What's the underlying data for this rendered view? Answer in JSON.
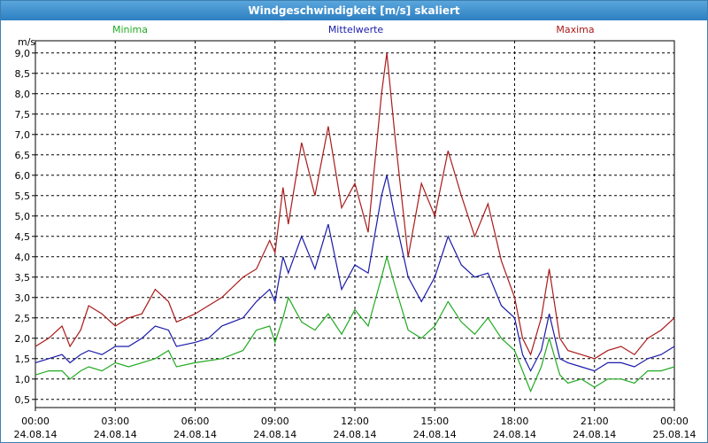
{
  "window": {
    "title": "Windgeschwindigkeit [m/s] skaliert"
  },
  "chart_data": {
    "type": "line",
    "title": "Windgeschwindigkeit [m/s] skaliert",
    "ylabel": "m/s",
    "xlabel": "",
    "ylim": [
      0.3,
      9.3
    ],
    "xlim": [
      0,
      24
    ],
    "grid": true,
    "legend_placement": "top",
    "y_ticks": [
      "0,5",
      "1,0",
      "1,5",
      "2,0",
      "2,5",
      "3,0",
      "3,5",
      "4,0",
      "4,5",
      "5,0",
      "5,5",
      "6,0",
      "6,5",
      "7,0",
      "7,5",
      "8,0",
      "8,5",
      "9,0"
    ],
    "y_tick_values": [
      0.5,
      1.0,
      1.5,
      2.0,
      2.5,
      3.0,
      3.5,
      4.0,
      4.5,
      5.0,
      5.5,
      6.0,
      6.5,
      7.0,
      7.5,
      8.0,
      8.5,
      9.0
    ],
    "x_ticks": [
      {
        "time": "00:00",
        "date": "24.08.14",
        "hour": 0
      },
      {
        "time": "03:00",
        "date": "24.08.14",
        "hour": 3
      },
      {
        "time": "06:00",
        "date": "24.08.14",
        "hour": 6
      },
      {
        "time": "09:00",
        "date": "24.08.14",
        "hour": 9
      },
      {
        "time": "12:00",
        "date": "24.08.14",
        "hour": 12
      },
      {
        "time": "15:00",
        "date": "24.08.14",
        "hour": 15
      },
      {
        "time": "18:00",
        "date": "24.08.14",
        "hour": 18
      },
      {
        "time": "21:00",
        "date": "24.08.14",
        "hour": 21
      },
      {
        "time": "00:00",
        "date": "25.08.14",
        "hour": 24
      }
    ],
    "series": [
      {
        "name": "Minima",
        "color": "#22aa22",
        "points": [
          [
            0.0,
            1.1
          ],
          [
            0.5,
            1.2
          ],
          [
            1.0,
            1.2
          ],
          [
            1.3,
            1.0
          ],
          [
            1.7,
            1.2
          ],
          [
            2.0,
            1.3
          ],
          [
            2.5,
            1.2
          ],
          [
            3.0,
            1.4
          ],
          [
            3.5,
            1.3
          ],
          [
            4.0,
            1.4
          ],
          [
            4.5,
            1.5
          ],
          [
            5.0,
            1.7
          ],
          [
            5.3,
            1.3
          ],
          [
            6.0,
            1.4
          ],
          [
            7.0,
            1.5
          ],
          [
            7.8,
            1.7
          ],
          [
            8.3,
            2.2
          ],
          [
            8.8,
            2.3
          ],
          [
            9.0,
            1.9
          ],
          [
            9.3,
            2.5
          ],
          [
            9.5,
            3.0
          ],
          [
            10.0,
            2.4
          ],
          [
            10.5,
            2.2
          ],
          [
            11.0,
            2.6
          ],
          [
            11.5,
            2.1
          ],
          [
            12.0,
            2.7
          ],
          [
            12.5,
            2.3
          ],
          [
            13.0,
            3.5
          ],
          [
            13.2,
            4.0
          ],
          [
            13.5,
            3.3
          ],
          [
            14.0,
            2.2
          ],
          [
            14.5,
            2.0
          ],
          [
            15.0,
            2.3
          ],
          [
            15.5,
            2.9
          ],
          [
            16.0,
            2.4
          ],
          [
            16.5,
            2.1
          ],
          [
            17.0,
            2.5
          ],
          [
            17.5,
            2.0
          ],
          [
            18.0,
            1.7
          ],
          [
            18.3,
            1.2
          ],
          [
            18.6,
            0.7
          ],
          [
            19.0,
            1.3
          ],
          [
            19.3,
            2.0
          ],
          [
            19.7,
            1.1
          ],
          [
            20.0,
            0.9
          ],
          [
            20.5,
            1.0
          ],
          [
            21.0,
            0.8
          ],
          [
            21.5,
            1.0
          ],
          [
            22.0,
            1.0
          ],
          [
            22.5,
            0.9
          ],
          [
            23.0,
            1.2
          ],
          [
            23.5,
            1.2
          ],
          [
            24.0,
            1.3
          ]
        ]
      },
      {
        "name": "Mittelwerte",
        "color": "#1a1aaa",
        "points": [
          [
            0.0,
            1.4
          ],
          [
            0.5,
            1.5
          ],
          [
            1.0,
            1.6
          ],
          [
            1.3,
            1.4
          ],
          [
            1.7,
            1.6
          ],
          [
            2.0,
            1.7
          ],
          [
            2.5,
            1.6
          ],
          [
            3.0,
            1.8
          ],
          [
            3.5,
            1.8
          ],
          [
            4.0,
            2.0
          ],
          [
            4.5,
            2.3
          ],
          [
            5.0,
            2.2
          ],
          [
            5.3,
            1.8
          ],
          [
            6.0,
            1.9
          ],
          [
            6.5,
            2.0
          ],
          [
            7.0,
            2.3
          ],
          [
            7.8,
            2.5
          ],
          [
            8.3,
            2.9
          ],
          [
            8.8,
            3.2
          ],
          [
            9.0,
            2.9
          ],
          [
            9.3,
            4.0
          ],
          [
            9.5,
            3.6
          ],
          [
            10.0,
            4.5
          ],
          [
            10.5,
            3.7
          ],
          [
            11.0,
            4.8
          ],
          [
            11.5,
            3.2
          ],
          [
            12.0,
            3.8
          ],
          [
            12.5,
            3.6
          ],
          [
            13.0,
            5.5
          ],
          [
            13.2,
            6.0
          ],
          [
            13.5,
            5.0
          ],
          [
            14.0,
            3.5
          ],
          [
            14.5,
            2.9
          ],
          [
            15.0,
            3.5
          ],
          [
            15.5,
            4.5
          ],
          [
            16.0,
            3.8
          ],
          [
            16.5,
            3.5
          ],
          [
            17.0,
            3.6
          ],
          [
            17.5,
            2.8
          ],
          [
            18.0,
            2.5
          ],
          [
            18.3,
            1.6
          ],
          [
            18.6,
            1.2
          ],
          [
            19.0,
            1.7
          ],
          [
            19.3,
            2.6
          ],
          [
            19.7,
            1.5
          ],
          [
            20.0,
            1.4
          ],
          [
            20.5,
            1.3
          ],
          [
            21.0,
            1.2
          ],
          [
            21.5,
            1.4
          ],
          [
            22.0,
            1.4
          ],
          [
            22.5,
            1.3
          ],
          [
            23.0,
            1.5
          ],
          [
            23.5,
            1.6
          ],
          [
            24.0,
            1.8
          ]
        ]
      },
      {
        "name": "Maxima",
        "color": "#aa1a1a",
        "points": [
          [
            0.0,
            1.8
          ],
          [
            0.5,
            2.0
          ],
          [
            1.0,
            2.3
          ],
          [
            1.3,
            1.8
          ],
          [
            1.7,
            2.2
          ],
          [
            2.0,
            2.8
          ],
          [
            2.5,
            2.6
          ],
          [
            3.0,
            2.3
          ],
          [
            3.5,
            2.5
          ],
          [
            4.0,
            2.6
          ],
          [
            4.5,
            3.2
          ],
          [
            5.0,
            2.9
          ],
          [
            5.3,
            2.4
          ],
          [
            6.0,
            2.6
          ],
          [
            6.5,
            2.8
          ],
          [
            7.0,
            3.0
          ],
          [
            7.8,
            3.5
          ],
          [
            8.3,
            3.7
          ],
          [
            8.8,
            4.4
          ],
          [
            9.0,
            4.1
          ],
          [
            9.3,
            5.7
          ],
          [
            9.5,
            4.8
          ],
          [
            10.0,
            6.8
          ],
          [
            10.5,
            5.5
          ],
          [
            11.0,
            7.2
          ],
          [
            11.5,
            5.2
          ],
          [
            12.0,
            5.8
          ],
          [
            12.5,
            4.6
          ],
          [
            13.0,
            8.0
          ],
          [
            13.2,
            9.0
          ],
          [
            13.5,
            7.0
          ],
          [
            14.0,
            4.0
          ],
          [
            14.5,
            5.8
          ],
          [
            15.0,
            5.0
          ],
          [
            15.5,
            6.6
          ],
          [
            16.0,
            5.5
          ],
          [
            16.5,
            4.5
          ],
          [
            17.0,
            5.3
          ],
          [
            17.5,
            3.9
          ],
          [
            18.0,
            3.0
          ],
          [
            18.3,
            2.0
          ],
          [
            18.6,
            1.6
          ],
          [
            19.0,
            2.5
          ],
          [
            19.3,
            3.7
          ],
          [
            19.7,
            2.0
          ],
          [
            20.0,
            1.7
          ],
          [
            20.5,
            1.6
          ],
          [
            21.0,
            1.5
          ],
          [
            21.5,
            1.7
          ],
          [
            22.0,
            1.8
          ],
          [
            22.5,
            1.6
          ],
          [
            23.0,
            2.0
          ],
          [
            23.5,
            2.2
          ],
          [
            24.0,
            2.5
          ]
        ]
      }
    ]
  }
}
